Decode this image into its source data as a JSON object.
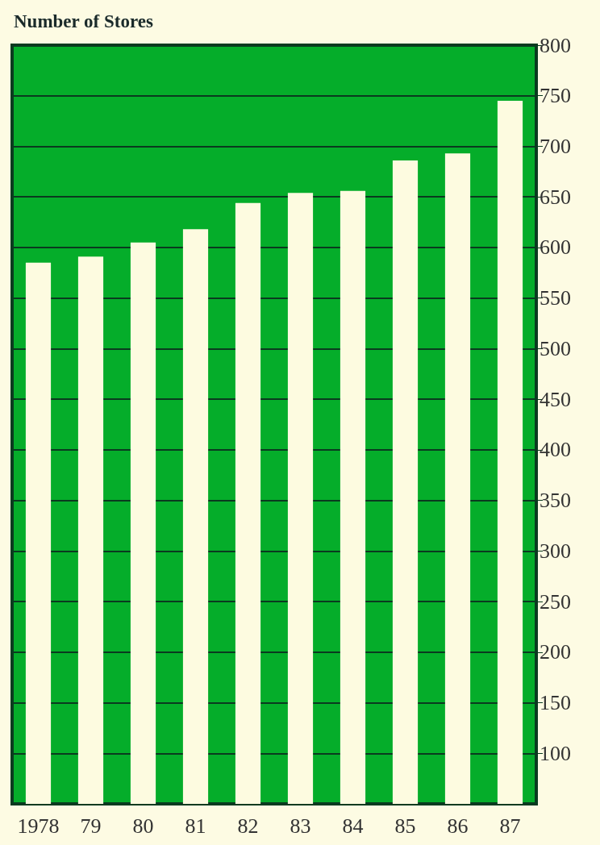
{
  "chart_data": {
    "type": "bar",
    "title": "Number of Stores",
    "categories": [
      "1978",
      "79",
      "80",
      "81",
      "82",
      "83",
      "84",
      "85",
      "86",
      "87"
    ],
    "values": [
      585,
      591,
      605,
      618,
      644,
      654,
      656,
      686,
      693,
      745
    ],
    "color": "#fdfbe0",
    "ylim": [
      50,
      800
    ],
    "yticks": [
      100,
      150,
      200,
      250,
      300,
      350,
      400,
      450,
      500,
      550,
      600,
      650,
      700,
      750,
      800
    ],
    "grid": "y"
  }
}
